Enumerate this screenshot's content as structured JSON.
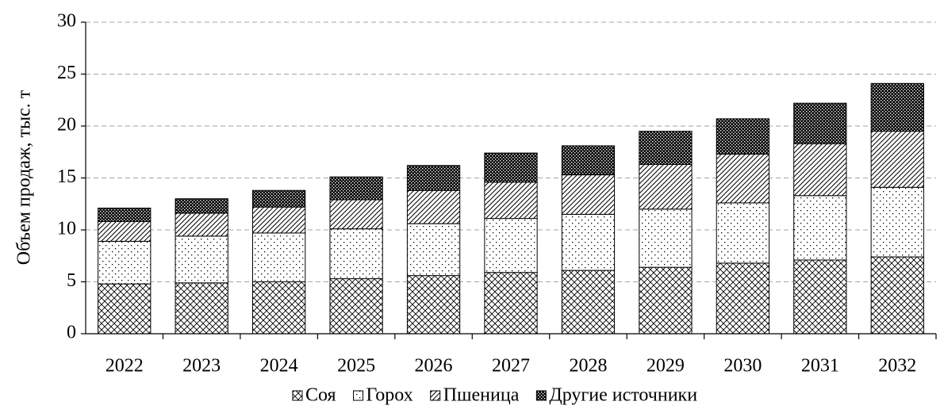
{
  "chart_data": {
    "type": "stacked_bar",
    "ylabel": "Объем продаж, тыс. т",
    "categories": [
      "2022",
      "2023",
      "2024",
      "2025",
      "2026",
      "2027",
      "2028",
      "2029",
      "2030",
      "2031",
      "2032"
    ],
    "series": [
      {
        "name": "Соя",
        "color": "#000000",
        "values": [
          4.8,
          4.9,
          5.0,
          5.3,
          5.6,
          5.9,
          6.1,
          6.4,
          6.8,
          7.1,
          7.4
        ]
      },
      {
        "name": "Горох",
        "color": "#000000",
        "values": [
          4.1,
          4.5,
          4.7,
          4.8,
          5.0,
          5.2,
          5.4,
          5.6,
          5.8,
          6.2,
          6.7
        ]
      },
      {
        "name": "Пшеница",
        "color": "#000000",
        "values": [
          1.9,
          2.2,
          2.5,
          2.8,
          3.2,
          3.5,
          3.8,
          4.3,
          4.7,
          5.0,
          5.4
        ]
      },
      {
        "name": "Другие источники",
        "color": "#000000",
        "values": [
          1.3,
          1.4,
          1.6,
          2.2,
          2.4,
          2.8,
          2.8,
          3.2,
          3.4,
          3.9,
          4.6
        ]
      }
    ],
    "ylim": [
      0,
      30
    ],
    "yticks": [
      0,
      5,
      10,
      15,
      20,
      25,
      30
    ],
    "grid": true,
    "legend": "bottom"
  }
}
